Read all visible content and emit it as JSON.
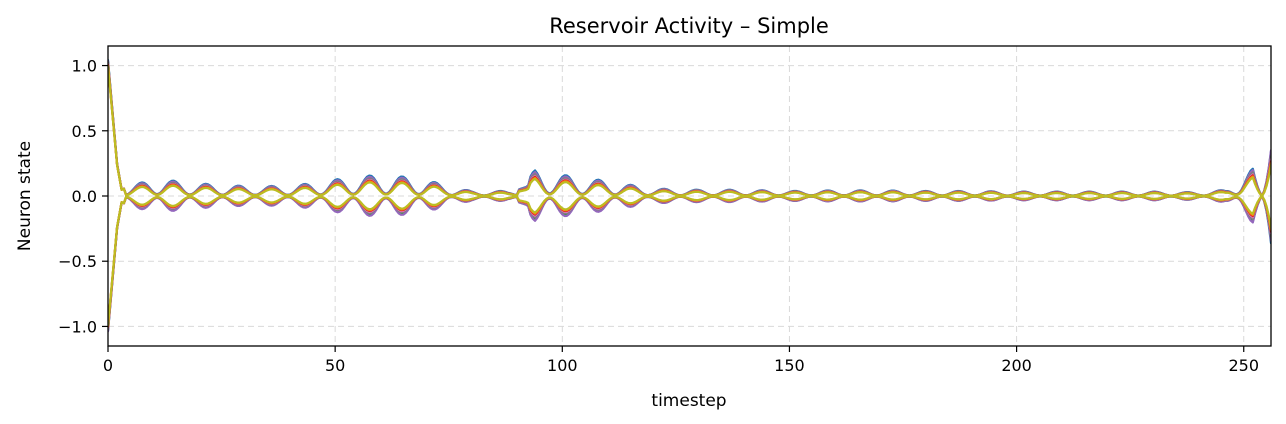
{
  "chart_data": {
    "type": "line",
    "title": "Reservoir Activity – Simple",
    "xlabel": "timestep",
    "ylabel": "Neuron state",
    "xlim": [
      0,
      256
    ],
    "ylim": [
      -1.15,
      1.15
    ],
    "xticks": [
      0,
      50,
      100,
      150,
      200,
      250
    ],
    "xtick_labels": [
      "0",
      "50",
      "100",
      "150",
      "200",
      "250"
    ],
    "yticks": [
      -1.0,
      -0.5,
      0.0,
      0.5,
      1.0
    ],
    "ytick_labels": [
      "−1.0",
      "−0.5",
      "0.0",
      "0.5",
      "1.0"
    ],
    "grid": true,
    "legend": "none",
    "timesteps": 256,
    "series": [
      {
        "amplitude": 0.95,
        "offset": 0.01,
        "sign": 1,
        "color": "#1f77b4"
      },
      {
        "amplitude": 0.9,
        "offset": -0.005,
        "sign": -1,
        "color": "#1f77b4"
      },
      {
        "amplitude": 0.88,
        "offset": 0.0,
        "sign": 1,
        "color": "#2ca02c"
      },
      {
        "amplitude": 0.85,
        "offset": 0.005,
        "sign": -1,
        "color": "#2ca02c"
      },
      {
        "amplitude": 0.9,
        "offset": 0.0,
        "sign": 1,
        "color": "#9467bd"
      },
      {
        "amplitude": 0.92,
        "offset": -0.01,
        "sign": -1,
        "color": "#9467bd"
      },
      {
        "amplitude": 0.8,
        "offset": 0.0,
        "sign": 1,
        "color": "#8c564b"
      },
      {
        "amplitude": 0.78,
        "offset": 0.0,
        "sign": -1,
        "color": "#8c564b"
      },
      {
        "amplitude": 0.82,
        "offset": 0.0,
        "sign": 1,
        "color": "#7f7f7f"
      },
      {
        "amplitude": 0.8,
        "offset": 0.0,
        "sign": -1,
        "color": "#7f7f7f"
      },
      {
        "amplitude": 0.75,
        "offset": 0.0,
        "sign": 1,
        "color": "#e377c2"
      },
      {
        "amplitude": 0.74,
        "offset": 0.0,
        "sign": -1,
        "color": "#e377c2"
      },
      {
        "amplitude": 0.72,
        "offset": 0.0,
        "sign": 1,
        "color": "#d62728"
      },
      {
        "amplitude": 0.7,
        "offset": 0.0,
        "sign": -1,
        "color": "#d62728"
      },
      {
        "amplitude": 0.68,
        "offset": 0.0,
        "sign": 1,
        "color": "#ff7f0e"
      },
      {
        "amplitude": 0.66,
        "offset": 0.0,
        "sign": -1,
        "color": "#ff7f0e"
      },
      {
        "amplitude": 0.64,
        "offset": 0.0,
        "sign": 1,
        "color": "#bcbd22"
      },
      {
        "amplitude": 0.62,
        "offset": 0.0,
        "sign": -1,
        "color": "#bcbd22"
      }
    ],
    "envelope": {
      "t": [
        0,
        1,
        2,
        3,
        5,
        10,
        20,
        30,
        40,
        48,
        55,
        62,
        70,
        76,
        80,
        85,
        88,
        92,
        94,
        100,
        110,
        120,
        130,
        140,
        150,
        160,
        170,
        180,
        190,
        200,
        210,
        220,
        230,
        240,
        246,
        250,
        252,
        254,
        256
      ],
      "value": [
        1.05,
        0.65,
        0.25,
        0.05,
        0.08,
        0.14,
        0.1,
        0.08,
        0.08,
        0.12,
        0.16,
        0.17,
        0.13,
        0.07,
        0.04,
        0.04,
        0.04,
        0.12,
        0.21,
        0.17,
        0.12,
        0.06,
        0.05,
        0.05,
        0.04,
        0.045,
        0.045,
        0.04,
        0.04,
        0.035,
        0.035,
        0.035,
        0.035,
        0.03,
        0.05,
        0.18,
        0.22,
        0.1,
        0.38
      ]
    }
  }
}
